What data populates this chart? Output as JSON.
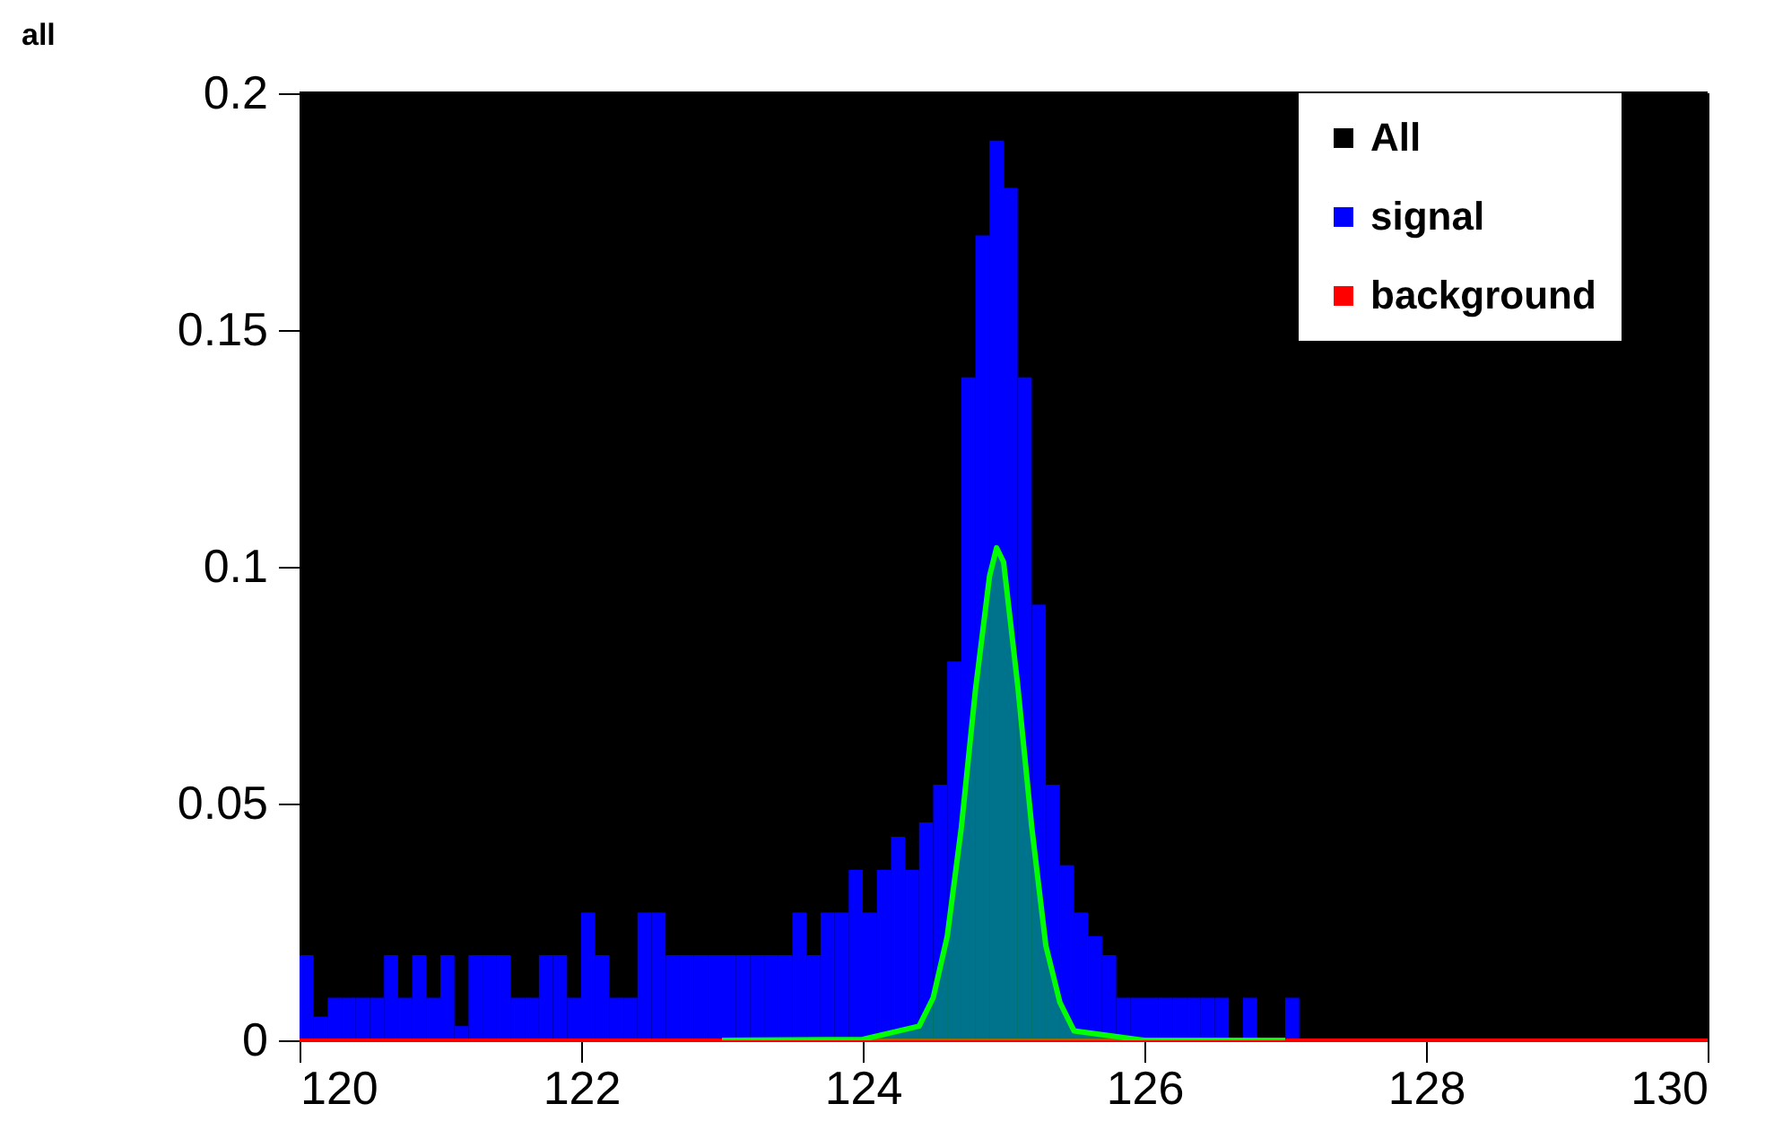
{
  "chart_data": {
    "type": "histogram",
    "title": "all",
    "bins": [
      120.0,
      120.1,
      120.2,
      120.3,
      120.4,
      120.5,
      120.6,
      120.7,
      120.8,
      120.9,
      121.0,
      121.1,
      121.2,
      121.3,
      121.4,
      121.5,
      121.6,
      121.7,
      121.8,
      121.9,
      122.0,
      122.1,
      122.2,
      122.3,
      122.4,
      122.5,
      122.6,
      122.7,
      122.8,
      122.9,
      123.0,
      123.1,
      123.2,
      123.3,
      123.4,
      123.5,
      123.6,
      123.7,
      123.8,
      123.9,
      124.0,
      124.1,
      124.2,
      124.3,
      124.4,
      124.5,
      124.6,
      124.7,
      124.8,
      124.9,
      125.0,
      125.1,
      125.2,
      125.3,
      125.4,
      125.5,
      125.6,
      125.7,
      125.8,
      125.9,
      126.0,
      126.1,
      126.2,
      126.3,
      126.4,
      126.5,
      126.6,
      126.7,
      126.8,
      126.9,
      127.0,
      127.1,
      127.2,
      127.3,
      127.4,
      127.5,
      127.6,
      127.7,
      127.8,
      127.9,
      128.0,
      128.1,
      128.2,
      128.3,
      128.4,
      128.5,
      128.6,
      128.7,
      128.8,
      128.9,
      129.0,
      129.1,
      129.2,
      129.3,
      129.4,
      129.5,
      129.6,
      129.7,
      129.8,
      129.9,
      130.0
    ],
    "series": [
      {
        "name": "All",
        "color": "#000000",
        "type": "step",
        "x": [
          120,
          130
        ],
        "values": [
          0.2,
          0.2
        ]
      },
      {
        "name": "signal",
        "color": "#0000ff",
        "values": [
          0.018,
          0.005,
          0.009,
          0.009,
          0.009,
          0.009,
          0.018,
          0.009,
          0.018,
          0.009,
          0.018,
          0.003,
          0.018,
          0.018,
          0.018,
          0.009,
          0.009,
          0.018,
          0.018,
          0.009,
          0.027,
          0.018,
          0.009,
          0.009,
          0.027,
          0.027,
          0.018,
          0.018,
          0.018,
          0.018,
          0.018,
          0.018,
          0.018,
          0.018,
          0.018,
          0.027,
          0.018,
          0.027,
          0.027,
          0.036,
          0.027,
          0.036,
          0.043,
          0.036,
          0.046,
          0.054,
          0.08,
          0.14,
          0.17,
          0.19,
          0.18,
          0.14,
          0.092,
          0.054,
          0.037,
          0.027,
          0.022,
          0.018,
          0.009,
          0.009,
          0.009,
          0.009,
          0.009,
          0.009,
          0.009,
          0.009,
          0,
          0.009,
          0,
          0,
          0.009,
          0,
          0,
          0,
          0,
          0,
          0,
          0,
          0,
          0,
          0,
          0,
          0,
          0,
          0,
          0,
          0,
          0,
          0,
          0,
          0,
          0,
          0,
          0,
          0,
          0,
          0,
          0,
          0,
          0
        ]
      },
      {
        "name": "background",
        "color": "#ff0000",
        "type": "step",
        "x": [
          120,
          130
        ],
        "values": [
          0,
          0
        ]
      },
      {
        "type": "area",
        "color": "#00ff00",
        "x": [
          123,
          124,
          124.4,
          124.5,
          124.6,
          124.7,
          124.8,
          124.9,
          124.95,
          125.0,
          125.1,
          125.2,
          125.3,
          125.4,
          125.5,
          126,
          127
        ],
        "values": [
          0,
          0.0002,
          0.003,
          0.009,
          0.022,
          0.045,
          0.074,
          0.098,
          0.104,
          0.101,
          0.075,
          0.045,
          0.02,
          0.008,
          0.002,
          0,
          0
        ]
      }
    ],
    "xlim": [
      120,
      130
    ],
    "xticks": [
      120,
      122,
      124,
      126,
      128,
      130
    ],
    "ylim": [
      0,
      0.2
    ],
    "yticks": [
      0,
      0.05,
      0.1,
      0.15,
      0.2
    ],
    "legend": "top right"
  }
}
